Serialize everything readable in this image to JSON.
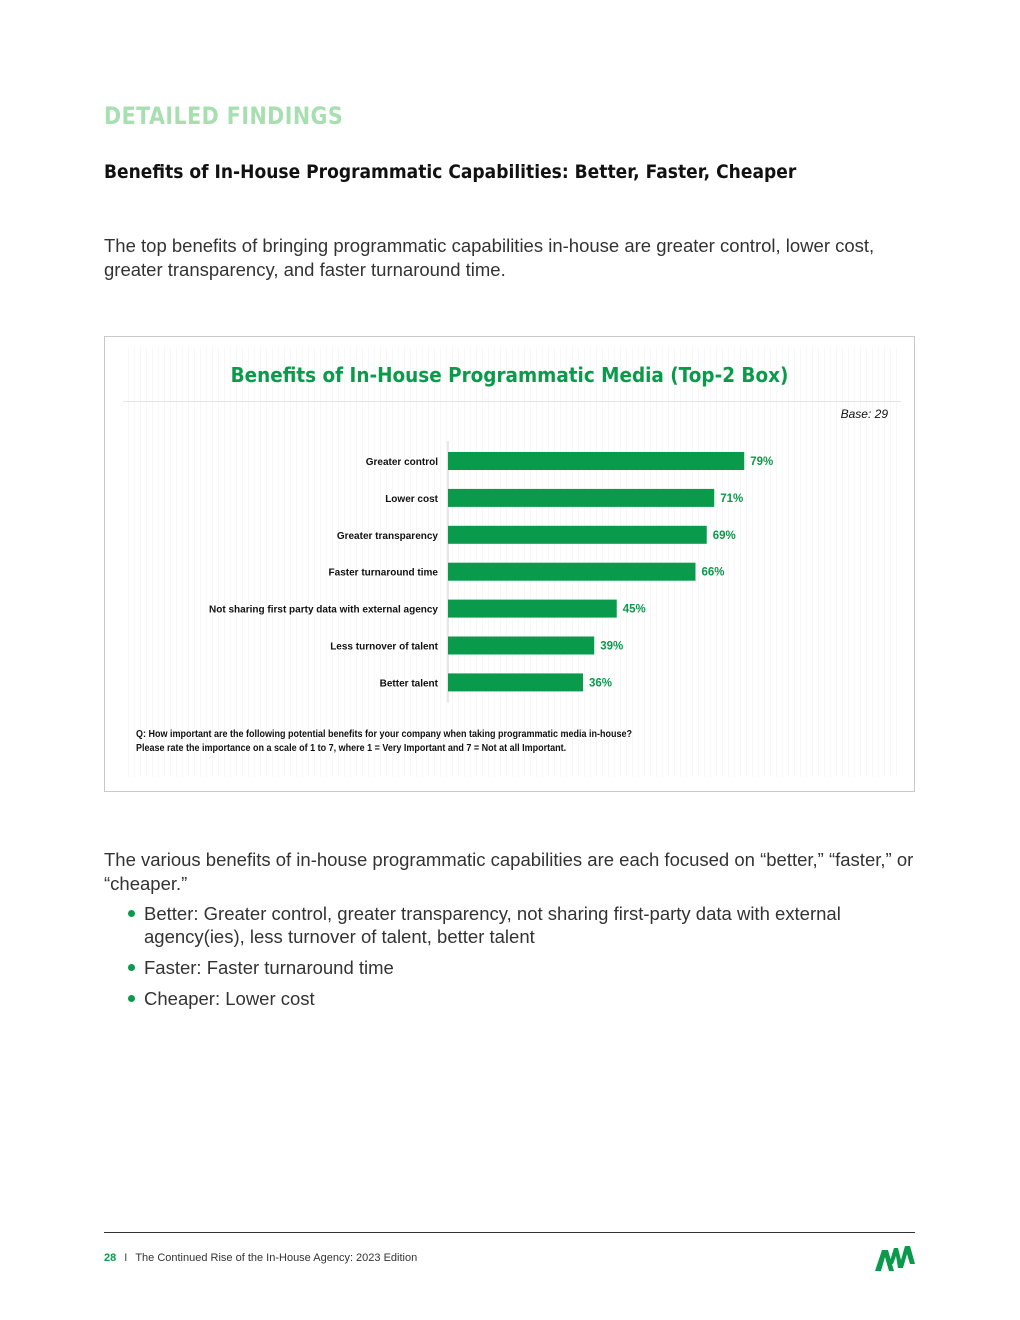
{
  "header": {
    "section_label": "DETAILED FINDINGS",
    "title": "Benefits of In-House Programmatic Capabilities: Better, Faster, Cheaper"
  },
  "intro": "The top benefits of bringing programmatic capabilities in-house are greater control, lower cost, greater transparency, and faster turnaround time.",
  "chart_data": {
    "type": "bar",
    "orientation": "horizontal",
    "title": "Benefits of In-House Programmatic Media (Top-2 Box)",
    "base_note": "Base: 29",
    "categories": [
      "Greater control",
      "Lower cost",
      "Greater transparency",
      "Faster turnaround time",
      "Not sharing first party data with external agency",
      "Less turnover of talent",
      "Better talent"
    ],
    "values": [
      79,
      71,
      69,
      66,
      45,
      39,
      36
    ],
    "value_labels": [
      "79%",
      "71%",
      "69%",
      "66%",
      "45%",
      "39%",
      "36%"
    ],
    "unit": "%",
    "xlim": [
      0,
      100
    ],
    "bar_color": "#0a9a4b",
    "label_color": "#0a9a4b",
    "grid": false,
    "legend": "none",
    "question_lines": [
      "Q: How important are the following potential benefits for your company when taking programmatic media in-house?",
      "Please rate the importance on a scale of 1 to 7, where 1 = Very Important and 7 = Not at all Important."
    ]
  },
  "summary": {
    "lead": "The various benefits of in-house programmatic capabilities are each focused on “better,” “faster,” or “cheaper.”",
    "bullets": [
      "Better: Greater control, greater transparency, not sharing first-party data with external agency(ies), less turnover of talent, better talent",
      "Faster: Faster turnaround time",
      "Cheaper: Lower cost"
    ]
  },
  "footer": {
    "page_number": "28",
    "separator": "I",
    "publication": "The Continued Rise of the In-House Agency: 2023 Edition",
    "logo": "ANA"
  },
  "colors": {
    "accent": "#0a9a4b",
    "section_label": "#a8dfb0"
  }
}
